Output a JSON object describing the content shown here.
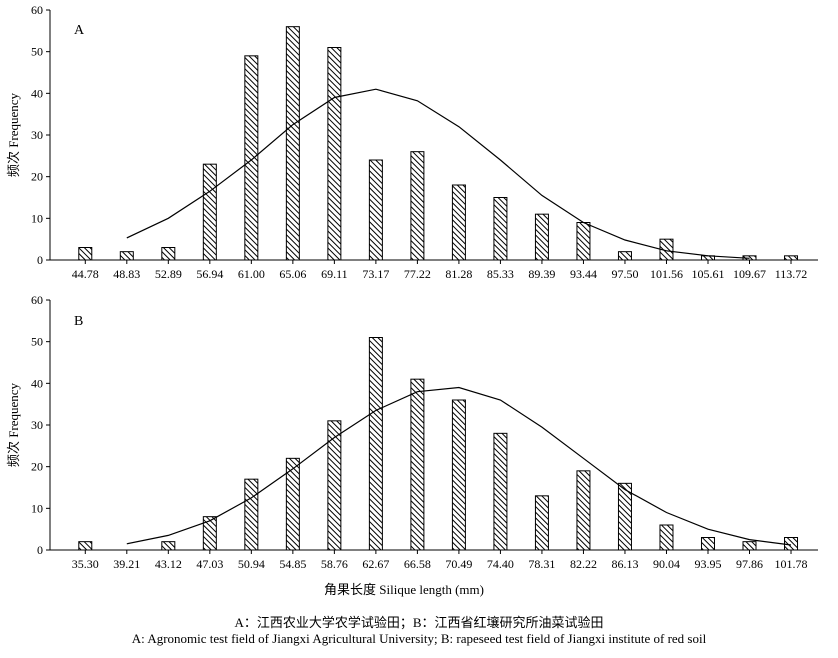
{
  "chart_data": [
    {
      "type": "bar",
      "panel_label": "A",
      "ylabel": "频次 Frequency",
      "ylim": [
        0,
        60
      ],
      "yticks": [
        0,
        10,
        20,
        30,
        40,
        50,
        60
      ],
      "grid": false,
      "categories": [
        "44.78",
        "48.83",
        "52.89",
        "56.94",
        "61.00",
        "65.06",
        "69.11",
        "73.17",
        "77.22",
        "81.28",
        "85.33",
        "89.39",
        "93.44",
        "97.50",
        "101.56",
        "105.61",
        "109.67",
        "113.72"
      ],
      "series": [
        {
          "type": "bar",
          "values": [
            3,
            2,
            3,
            23,
            49,
            56,
            51,
            24,
            26,
            18,
            15,
            11,
            9,
            2,
            5,
            1,
            1,
            1
          ]
        },
        {
          "type": "line",
          "values": [
            null,
            5.3,
            10,
            16.5,
            24,
            32.5,
            39,
            41,
            38.2,
            32,
            24,
            15.5,
            9,
            4.8,
            2.2,
            1,
            0.4,
            null
          ]
        }
      ]
    },
    {
      "type": "bar",
      "panel_label": "B",
      "ylabel": "频次 Frequency",
      "xlabel": "角果长度 Silique length (mm)",
      "ylim": [
        0,
        60
      ],
      "yticks": [
        0,
        10,
        20,
        30,
        40,
        50,
        60
      ],
      "grid": false,
      "categories": [
        "35.30",
        "39.21",
        "43.12",
        "47.03",
        "50.94",
        "54.85",
        "58.76",
        "62.67",
        "66.58",
        "70.49",
        "74.40",
        "78.31",
        "82.22",
        "86.13",
        "90.04",
        "93.95",
        "97.86",
        "101.78"
      ],
      "series": [
        {
          "type": "bar",
          "values": [
            2,
            0,
            2,
            8,
            17,
            22,
            31,
            51,
            41,
            36,
            28,
            13,
            19,
            16,
            6,
            3,
            2,
            3
          ]
        },
        {
          "type": "line",
          "values": [
            null,
            1.5,
            3.5,
            7,
            12.5,
            19.5,
            27,
            33.5,
            38,
            39,
            36,
            29.5,
            22,
            14.5,
            9,
            5,
            2.5,
            1.2
          ]
        }
      ]
    }
  ],
  "caption": {
    "line1": "A：江西农业大学农学试验田；B：江西省红壤研究所油菜试验田",
    "line2": "A: Agronomic test field of Jiangxi Agricultural University; B: rapeseed test field of Jiangxi institute of red soil"
  }
}
